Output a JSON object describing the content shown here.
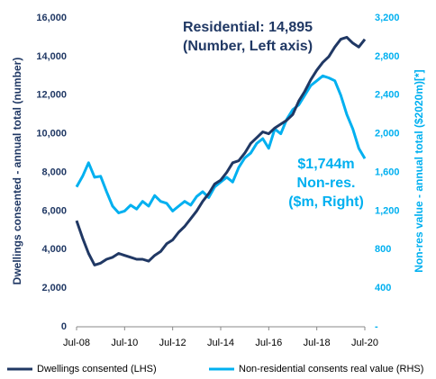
{
  "chart_data": {
    "type": "line",
    "annotations": [
      "Residential: 14,895",
      "(Number, Left axis)",
      "$1,744m",
      "Non-res.",
      "($m, Right)"
    ],
    "y_label": "Dwellings consented - annual total (number)",
    "y2_label": "Non-res value - annual total ($2020m)[*]",
    "x": [
      "Jul-08",
      null,
      null,
      null,
      null,
      null,
      null,
      null,
      "Jul-10",
      null,
      null,
      null,
      null,
      null,
      null,
      null,
      "Jul-12",
      null,
      null,
      null,
      null,
      null,
      null,
      null,
      "Jul-14",
      null,
      null,
      null,
      null,
      null,
      null,
      null,
      "Jul-16",
      null,
      null,
      null,
      null,
      null,
      null,
      null,
      "Jul-18",
      null,
      null,
      null,
      null,
      null,
      null,
      null,
      "Jul-20"
    ],
    "series": [
      {
        "name": "Dwellings consented (LHS)",
        "color": "#203864",
        "values": [
          5500,
          4600,
          3800,
          3200,
          3300,
          3500,
          3600,
          3800,
          3700,
          3600,
          3500,
          3500,
          3400,
          3700,
          3900,
          4300,
          4500,
          4900,
          5200,
          5600,
          6000,
          6500,
          6900,
          7400,
          7600,
          8000,
          8500,
          8600,
          9000,
          9500,
          9800,
          10100,
          10000,
          10300,
          10500,
          10700,
          11000,
          11700,
          12200,
          12800,
          13300,
          13700,
          14000,
          14500,
          14900,
          15000,
          14700,
          14500,
          14895
        ]
      },
      {
        "name": "Non-residential consents real value (RHS)",
        "color": "#00b0f0",
        "axis": "y2",
        "values": [
          1450,
          1560,
          1700,
          1550,
          1560,
          1400,
          1250,
          1180,
          1200,
          1260,
          1220,
          1300,
          1250,
          1360,
          1300,
          1280,
          1200,
          1250,
          1300,
          1260,
          1350,
          1400,
          1340,
          1450,
          1500,
          1550,
          1500,
          1650,
          1750,
          1800,
          1900,
          1950,
          1850,
          2050,
          2000,
          2150,
          2250,
          2300,
          2400,
          2500,
          2550,
          2600,
          2580,
          2550,
          2400,
          2200,
          2050,
          1850,
          1744
        ]
      }
    ],
    "ylim": [
      0,
      16000
    ],
    "yticks": [
      0,
      {
        "value": 2000,
        "label": "2,000"
      },
      {
        "value": 4000,
        "label": "4,000"
      },
      {
        "value": 6000,
        "label": "6,000"
      },
      {
        "value": 8000,
        "label": "8,000"
      },
      {
        "value": 10000,
        "label": "10,000"
      },
      {
        "value": 12000,
        "label": "12,000"
      },
      {
        "value": 14000,
        "label": "14,000"
      },
      {
        "value": 16000,
        "label": "16,000"
      }
    ],
    "y2lim": [
      0,
      3200
    ],
    "y2ticks": [
      {
        "value": 0,
        "label": "-"
      },
      400,
      800,
      {
        "value": 1200,
        "label": "1,200"
      },
      {
        "value": 1600,
        "label": "1,600"
      },
      {
        "value": 2000,
        "label": "2,000"
      },
      {
        "value": 2400,
        "label": "2,400"
      },
      {
        "value": 2800,
        "label": "2,800"
      },
      {
        "value": 3200,
        "label": "3,200"
      }
    ],
    "grid": false,
    "legend": "bottom"
  }
}
